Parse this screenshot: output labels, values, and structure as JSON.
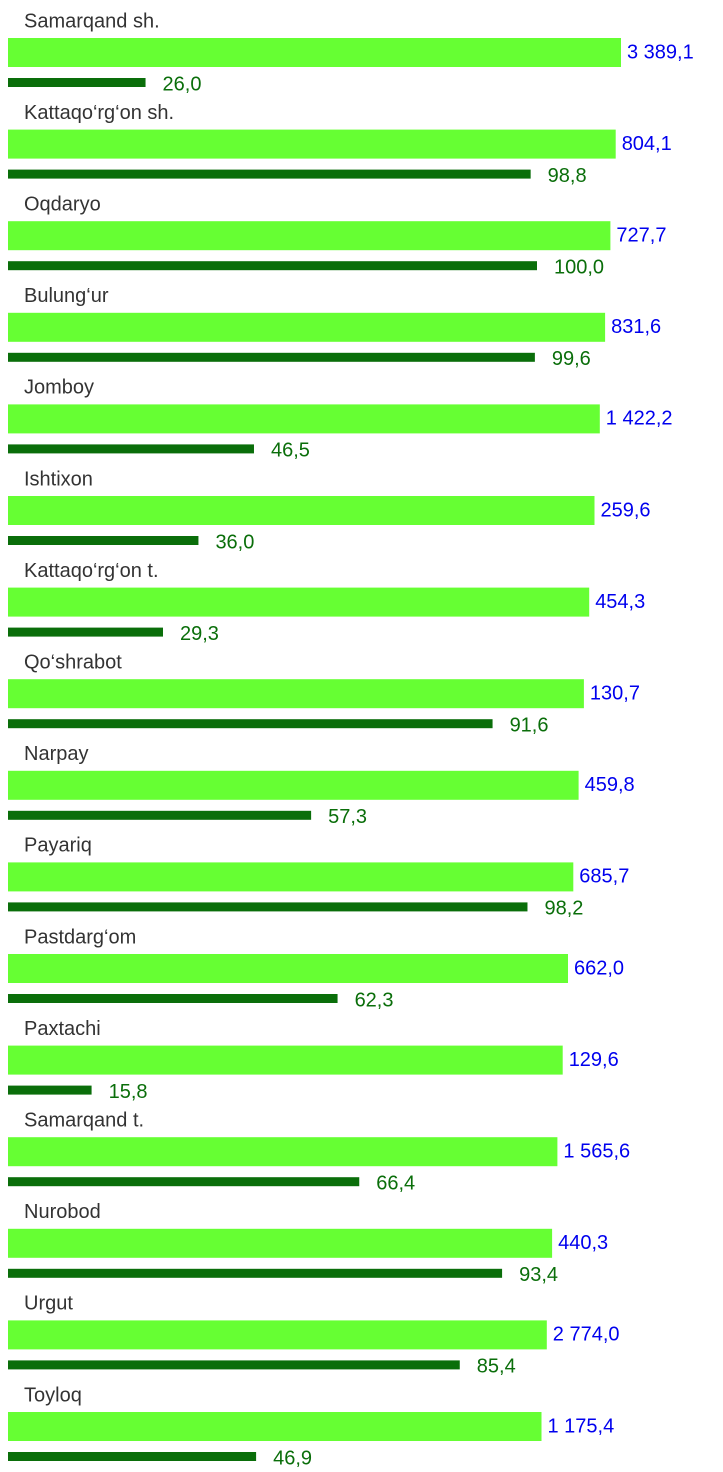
{
  "chart_data": {
    "type": "bar",
    "categories": [
      "Samarqand sh.",
      "Kattaqo‘rg‘on sh.",
      "Oqdaryo",
      "Bulung‘ur",
      "Jomboy",
      "Ishtixon",
      "Kattaqo‘rg‘on t.",
      "Qo‘shrabot",
      "Narpay",
      "Payariq",
      "Pastdarg‘om",
      "Paxtachi",
      "Samarqand t.",
      "Nurobod",
      "Urgut",
      "Toyloq"
    ],
    "series": [
      {
        "color": "#66ff33",
        "label_color": "#0000ee",
        "values": [
          3389.1,
          804.1,
          727.7,
          831.6,
          1422.2,
          259.6,
          454.3,
          130.7,
          459.8,
          685.7,
          662.0,
          129.6,
          1565.6,
          440.3,
          2774.0,
          1175.4
        ],
        "value_labels": [
          "3 389,1",
          "804,1",
          "727,7",
          "831,6",
          "1 422,2",
          "259,6",
          "454,3",
          "130,7",
          "459,8",
          "685,7",
          "662,0",
          "129,6",
          "1 565,6",
          "440,3",
          "2 774,0",
          "1 175,4"
        ]
      },
      {
        "color": "#0a6e0a",
        "label_color": "#0a6e0a",
        "values": [
          26.0,
          98.8,
          100.0,
          99.6,
          46.5,
          36.0,
          29.3,
          91.6,
          57.3,
          98.2,
          62.3,
          15.8,
          66.4,
          93.4,
          85.4,
          46.9
        ],
        "value_labels": [
          "26,0",
          "98,8",
          "100,0",
          "99,6",
          "46,5",
          "36,0",
          "29,3",
          "91,6",
          "57,3",
          "98,2",
          "62,3",
          "15,8",
          "66,4",
          "93,4",
          "85,4",
          "46,9"
        ]
      }
    ]
  }
}
